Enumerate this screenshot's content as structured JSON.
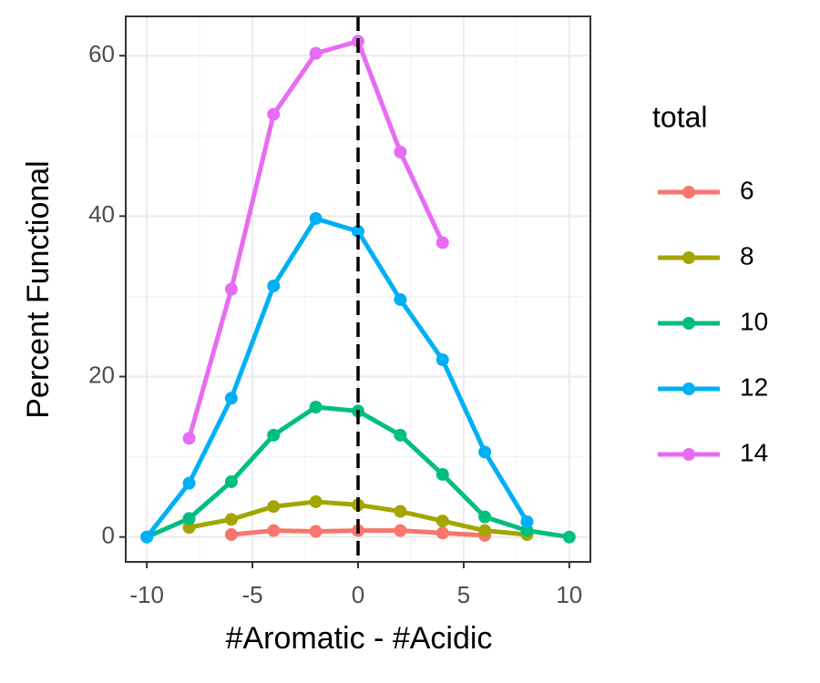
{
  "chart_data": {
    "type": "line",
    "x_label": "#Aromatic - #Acidic",
    "y_label": "Percent Functional",
    "legend_title": "total",
    "legend_position": "right",
    "grid": true,
    "vline_x": 0,
    "x": [
      -10,
      -8,
      -6,
      -4,
      -2,
      0,
      2,
      4,
      6,
      8,
      10
    ],
    "series": [
      {
        "name": "6",
        "color": "#F8766D",
        "values": [
          null,
          null,
          0.3,
          0.8,
          0.7,
          0.8,
          0.8,
          0.5,
          0.2,
          null,
          null
        ]
      },
      {
        "name": "8",
        "color": "#A3A500",
        "values": [
          null,
          1.2,
          2.2,
          3.8,
          4.4,
          4.0,
          3.2,
          2.0,
          0.8,
          0.3,
          null
        ]
      },
      {
        "name": "10",
        "color": "#00BF7D",
        "values": [
          0,
          2.3,
          6.9,
          12.7,
          16.2,
          15.7,
          12.7,
          7.8,
          2.5,
          0.8,
          0
        ]
      },
      {
        "name": "12",
        "color": "#00B0F6",
        "values": [
          0,
          6.7,
          17.3,
          31.3,
          39.7,
          38.1,
          29.6,
          22.1,
          10.6,
          1.9,
          null
        ]
      },
      {
        "name": "14",
        "color": "#E76BF3",
        "values": [
          null,
          12.3,
          30.9,
          52.7,
          60.3,
          61.8,
          48.0,
          36.7,
          null,
          null,
          null
        ]
      }
    ],
    "xlim": [
      -11,
      11
    ],
    "ylim": [
      -3.1,
      64.9
    ],
    "xticks": [
      -10,
      -5,
      0,
      5,
      10
    ],
    "yticks": [
      0,
      20,
      40,
      60
    ]
  }
}
